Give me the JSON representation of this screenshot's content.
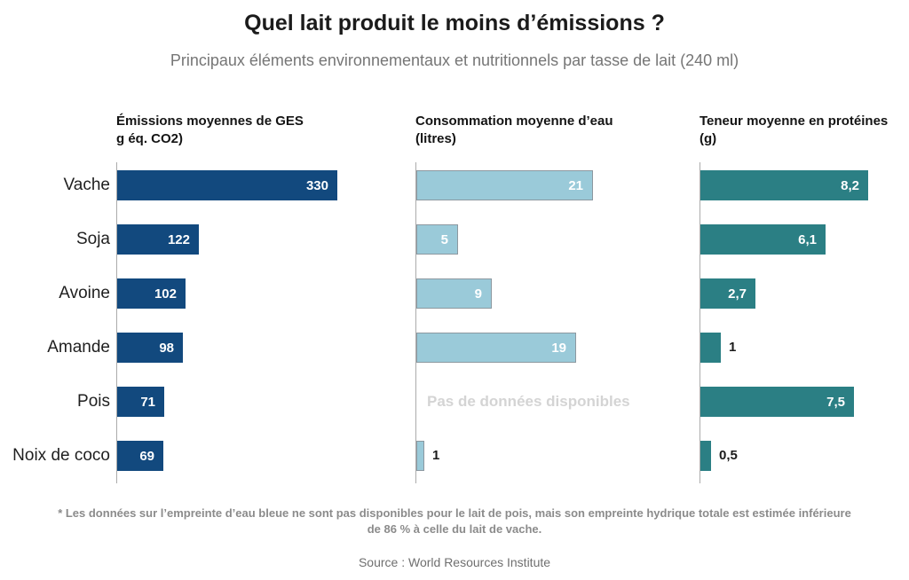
{
  "header": {
    "title": "Quel lait produit le moins d’émissions ?",
    "subtitle": "Principaux éléments environnementaux et nutritionnels par tasse de lait (240 ml)"
  },
  "chart_data": {
    "type": "bar",
    "orientation": "horizontal",
    "grid": "off",
    "categories": [
      "Vache",
      "Soja",
      "Avoine",
      "Amande",
      "Pois",
      "Noix de coco"
    ],
    "columns": [
      {
        "id": "ghg-emissions",
        "header_line1": "Émissions moyennes de GES",
        "header_line2": "g éq. CO2)",
        "bar_color": "#12497E",
        "values": [
          330,
          122,
          102,
          98,
          71,
          69
        ],
        "value_labels": [
          "330",
          "122",
          "102",
          "98",
          "71",
          "69"
        ],
        "xmax": 330
      },
      {
        "id": "water-consumption",
        "header_line1": "Consommation moyenne d’eau",
        "header_line2": "(litres)",
        "bar_color": "#9ACAD9",
        "bar_border_color": "#8C98A0",
        "values": [
          21,
          5,
          9,
          19,
          null,
          1
        ],
        "value_labels": [
          "21",
          "5",
          "9",
          "19",
          "",
          "1"
        ],
        "no_data": {
          "row": 4,
          "text": "Pas de données disponibles"
        },
        "xmax": 21
      },
      {
        "id": "protein-content",
        "header_line1": "Teneur moyenne en protéines",
        "header_line2": "(g)",
        "bar_color": "#2B7F84",
        "values": [
          8.2,
          6.1,
          2.7,
          1,
          7.5,
          0.5
        ],
        "value_labels": [
          "8,2",
          "6,1",
          "2,7",
          "1",
          "7,5",
          "0,5"
        ],
        "xmax": 8.2
      }
    ],
    "axis_color": "#ABABAB",
    "value_label_inside_color": "#FFFFFF",
    "value_label_outside_color": "#1B1B1B",
    "no_data_text_color": "#D4D4D4"
  },
  "footer": {
    "footnote_line1": "* Les données sur l’empreinte d’eau bleue ne sont pas disponibles pour le lait de pois, mais son empreinte hydrique totale est estimée inférieure",
    "footnote_line2": "de 86 % à celle du lait de vache.",
    "source": "Source : World Resources Institute"
  }
}
